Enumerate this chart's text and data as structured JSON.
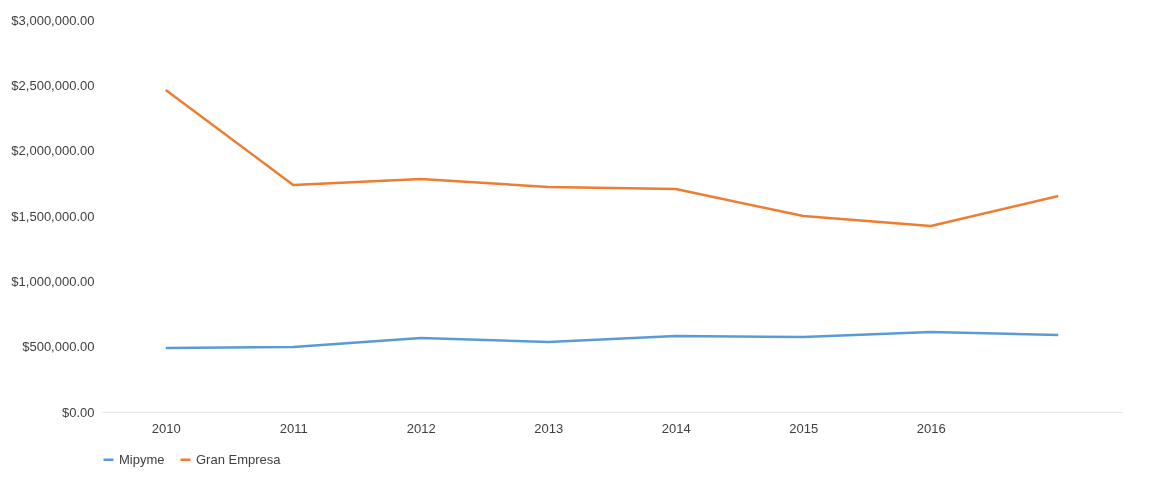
{
  "chart_data": {
    "type": "line",
    "categories": [
      "2010",
      "2011",
      "2012",
      "2013",
      "2014",
      "2015",
      "2016",
      null
    ],
    "series": [
      {
        "name": "Mipyme",
        "color": "#5b9bd5",
        "values": [
          490000,
          497000,
          566000,
          536000,
          582000,
          574000,
          612000,
          589000
        ]
      },
      {
        "name": "Gran Empresa",
        "color": "#ed7d31",
        "values": [
          2464000,
          1737000,
          1783000,
          1722000,
          1707000,
          1500000,
          1423000,
          1653000
        ]
      }
    ],
    "ylim": [
      0,
      3000000
    ],
    "yticks": [
      {
        "value": 0,
        "label": "$0.00"
      },
      {
        "value": 500000,
        "label": "$500,000.00"
      },
      {
        "value": 1000000,
        "label": "$1,000,000.00"
      },
      {
        "value": 1500000,
        "label": "$1,500,000.00"
      },
      {
        "value": 2000000,
        "label": "$2,000,000.00"
      },
      {
        "value": 2500000,
        "label": "$2,500,000.00"
      },
      {
        "value": 3000000,
        "label": "$3,000,000.00"
      }
    ],
    "grid": false,
    "legend": "bottom",
    "marker": "none",
    "line_style": "solid"
  }
}
